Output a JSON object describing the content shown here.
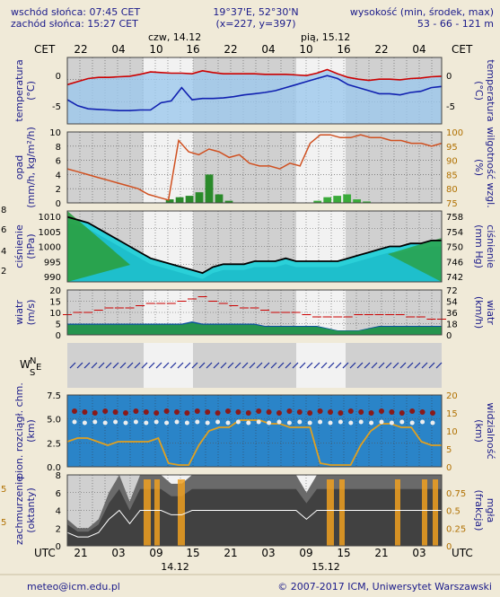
{
  "header": {
    "sunrise": "wschód słońca: 07:45 CET",
    "sunset": "zachód słońca: 15:27 CET",
    "coords": "19°37'E, 52°30'N",
    "grid": "(x=227, y=397)",
    "height_title": "wysokość (min, środek, max)",
    "height_values": "53 - 66 - 121 m"
  },
  "top_axis": {
    "tz": "CET",
    "days": [
      "czw, 14.12",
      "pią, 15.12"
    ],
    "hours": [
      "22",
      "04",
      "10",
      "16",
      "22",
      "04",
      "10",
      "16",
      "22",
      "04"
    ]
  },
  "bottom_axis": {
    "tz": "UTC",
    "hours": [
      "21",
      "03",
      "09",
      "15",
      "21",
      "03",
      "09",
      "15",
      "21",
      "03"
    ],
    "days": [
      "14.12",
      "15.12"
    ]
  },
  "footer": {
    "email": "meteo@icm.edu.pl",
    "copyright": "© 2007-2017 ICM, Uniwersytet Warszawski"
  },
  "colors": {
    "background": "#f0ead8",
    "night_band": "#d8d8d8",
    "temperature": "#cc0000",
    "dewpoint": "#1020b0",
    "precip_line": "#d05020",
    "pressure_line": "#000000",
    "wind_line": "#cc0000",
    "accent_axis": "#b07000"
  },
  "chart_data": [
    {
      "type": "line",
      "name": "temperature",
      "ylabel": "temperatura (°C)",
      "ylabel_left": "temperatura",
      "ylabel_left_unit": "(°C)",
      "ylabel_right": "temperatura",
      "ylabel_right_unit": "(°C)",
      "ylim": [
        -8,
        3
      ],
      "yticks": [
        0,
        -5
      ],
      "series": [
        {
          "values": [
            -1.5,
            -1.0,
            -0.5,
            -0.3,
            -0.3,
            -0.2,
            -0.1,
            0.2,
            0.6,
            0.5,
            0.4,
            0.4,
            0.3,
            0.8,
            0.5,
            0.3,
            0.3,
            0.3,
            0.3,
            0.2,
            0.2,
            0.2,
            0.1,
            0.0,
            0.4,
            1.0,
            0.3,
            -0.3,
            -0.6,
            -0.8,
            -0.6,
            -0.6,
            -0.7,
            -0.5,
            -0.4,
            -0.2,
            -0.1
          ]
        },
        {
          "values": [
            -4.0,
            -5.0,
            -5.5,
            -5.6,
            -5.7,
            -5.8,
            -5.8,
            -5.7,
            -5.7,
            -4.5,
            -4.2,
            -2.0,
            -4.0,
            -3.8,
            -3.8,
            -3.7,
            -3.5,
            -3.2,
            -3.0,
            -2.8,
            -2.5,
            -2.0,
            -1.5,
            -1.0,
            -0.5,
            0.0,
            -0.5,
            -1.5,
            -2.0,
            -2.5,
            -3.0,
            -3.0,
            -3.2,
            -2.8,
            -2.6,
            -2.0,
            -1.8
          ]
        }
      ]
    },
    {
      "type": "bar",
      "name": "precipitation",
      "ylabel_left": "opad",
      "ylabel_left_unit": "(mm/h, kg/m²/h)",
      "ylabel_right": "wilgotność wzgl.",
      "ylabel_right_unit": "(%)",
      "ylim_left": [
        0,
        10
      ],
      "yticks_left": [
        10,
        8,
        6,
        4,
        2,
        0
      ],
      "ylim_right": [
        75,
        100
      ],
      "yticks_right": [
        100,
        95,
        90,
        85,
        80,
        75
      ],
      "series": [
        {
          "type": "line",
          "values": [
            87,
            86,
            85,
            84,
            83,
            82,
            81,
            80,
            78,
            77,
            76,
            97,
            93,
            92,
            94,
            93,
            91,
            92,
            89,
            88,
            88,
            87,
            89,
            88,
            96,
            99,
            99,
            98,
            98,
            99,
            98,
            98,
            97,
            97,
            96,
            96,
            95,
            96
          ]
        },
        {
          "type": "bar",
          "values": [
            0,
            0,
            0,
            0,
            0,
            0,
            0,
            0,
            0,
            0,
            0.5,
            0.8,
            1.0,
            1.5,
            4.0,
            1.2,
            0.3,
            0,
            0,
            0,
            0,
            0,
            0,
            0,
            0,
            0.3,
            0.8,
            1.0,
            1.2,
            0.5,
            0.2,
            0,
            0,
            0,
            0,
            0,
            0,
            0
          ]
        }
      ]
    },
    {
      "type": "area",
      "name": "pressure",
      "ylabel_left": "ciśnienie",
      "ylabel_left_unit": "(hPa)",
      "ylabel_right": "ciśnienie",
      "ylabel_right_unit": "(mm Hg)",
      "ylim_left": [
        988,
        1012
      ],
      "yticks_left": [
        1010,
        1005,
        1000,
        995,
        990
      ],
      "ylim_right": [
        741,
        759
      ],
      "yticks_right": [
        758,
        754,
        750,
        746,
        742
      ],
      "series": [
        {
          "values": [
            1010,
            1009,
            1008,
            1006,
            1004,
            1002,
            1000,
            998,
            996,
            995,
            994,
            993,
            992,
            991,
            993,
            994,
            994,
            994,
            995,
            995,
            995,
            996,
            995,
            995,
            995,
            995,
            995,
            996,
            997,
            998,
            999,
            1000,
            1000,
            1001,
            1001,
            1002,
            1002
          ]
        }
      ]
    },
    {
      "type": "line",
      "name": "wind",
      "ylabel_left": "wiatr",
      "ylabel_left_unit": "(m/s)",
      "ylabel_right": "wiatr",
      "ylabel_right_unit": "(km/h)",
      "ylim_left": [
        0,
        20
      ],
      "yticks_left": [
        20,
        15,
        10,
        5,
        0
      ],
      "ylim_right": [
        0,
        72
      ],
      "yticks_right": [
        72,
        54,
        36,
        18,
        0
      ],
      "series": [
        {
          "name": "gusts",
          "values": [
            9,
            10,
            10,
            11,
            12,
            12,
            12,
            13,
            14,
            14,
            14,
            15,
            16,
            17,
            15,
            14,
            13,
            12,
            12,
            11,
            10,
            10,
            10,
            9,
            8,
            8,
            8,
            8,
            9,
            9,
            9,
            9,
            9,
            8,
            8,
            7,
            7
          ]
        },
        {
          "name": "wind",
          "values": [
            5,
            5,
            5,
            5,
            5,
            5,
            5,
            5,
            5,
            5,
            5,
            5,
            6,
            5,
            5,
            5,
            5,
            5,
            5,
            4,
            4,
            4,
            4,
            4,
            4,
            3,
            2,
            2,
            2,
            3,
            4,
            4,
            4,
            4,
            4,
            4,
            4
          ]
        }
      ]
    },
    {
      "type": "line",
      "name": "cloudbase",
      "ylabel_left": "pion. rozciągł. chm.",
      "ylabel_left_unit": "(km)",
      "ylabel_right": "widzialność",
      "ylabel_right_unit": "(km)",
      "ylim_left": [
        0,
        7.5
      ],
      "yticks_left": [
        "7.5",
        "5.0",
        "2.5",
        "0.0"
      ],
      "ylim_right": [
        0,
        20
      ],
      "yticks_right": [
        20,
        15,
        10,
        5,
        0
      ],
      "series": [
        {
          "name": "visibility",
          "values": [
            7,
            8,
            8,
            7,
            6,
            7,
            7,
            7,
            7,
            8,
            1,
            0.5,
            0.5,
            6,
            10,
            11,
            11,
            13,
            13,
            13,
            12,
            12,
            11,
            11,
            11,
            1,
            0.5,
            0.5,
            0.5,
            6,
            10,
            12,
            12,
            11,
            11,
            7,
            6,
            6
          ]
        }
      ]
    },
    {
      "type": "area",
      "name": "clouds",
      "ylabel_left": "zachmurzenie",
      "ylabel_left_unit": "(oktanty)",
      "ylabel_right": "mgła",
      "ylabel_right_unit": "(frakcja)",
      "ylim_left": [
        0,
        8
      ],
      "yticks_left": [
        8,
        6,
        4,
        2,
        0
      ],
      "ylim_right": [
        0,
        1
      ],
      "yticks_right": [
        "0.75",
        "0.5",
        "0.25",
        "0"
      ],
      "series": [
        {
          "values": [
            3,
            2,
            2,
            3,
            6,
            8,
            5,
            8,
            8,
            8,
            7,
            7,
            8,
            8,
            8,
            8,
            8,
            8,
            8,
            8,
            8,
            8,
            8,
            6,
            8,
            8,
            8,
            8,
            8,
            8,
            8,
            8,
            8,
            8,
            8,
            8,
            8
          ]
        }
      ]
    }
  ],
  "left_edge_ticks": [
    "8",
    "6",
    "4",
    "2",
    "5",
    "5"
  ]
}
